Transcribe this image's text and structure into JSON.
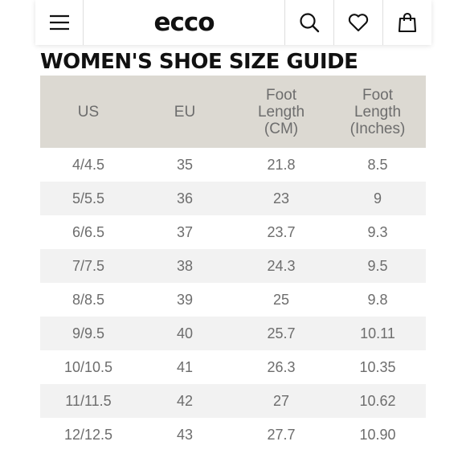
{
  "header": {
    "brand": "ecco",
    "icons": [
      "menu-icon",
      "search-icon",
      "heart-icon",
      "bag-icon"
    ]
  },
  "page": {
    "title": "WOMEN'S SHOE SIZE GUIDE"
  },
  "table": {
    "headers": [
      [
        "US"
      ],
      [
        "EU"
      ],
      [
        "Foot",
        "Length",
        "(CM)"
      ],
      [
        "Foot",
        "Length",
        "(Inches)"
      ]
    ],
    "rows": [
      [
        "4/4.5",
        "35",
        "21.8",
        "8.5"
      ],
      [
        "5/5.5",
        "36",
        "23",
        "9"
      ],
      [
        "6/6.5",
        "37",
        "23.7",
        "9.3"
      ],
      [
        "7/7.5",
        "38",
        "24.3",
        "9.5"
      ],
      [
        "8/8.5",
        "39",
        "25",
        "9.8"
      ],
      [
        "9/9.5",
        "40",
        "25.7",
        "10.11"
      ],
      [
        "10/10.5",
        "41",
        "26.3",
        "10.35"
      ],
      [
        "11/11.5",
        "42",
        "27",
        "10.62"
      ],
      [
        "12/12.5",
        "43",
        "27.7",
        "10.90"
      ]
    ]
  },
  "colors": {
    "header_bg": "#dcd9d2",
    "stripe": "#f2f2f2",
    "text": "#6d6d6d",
    "title": "#111111"
  }
}
